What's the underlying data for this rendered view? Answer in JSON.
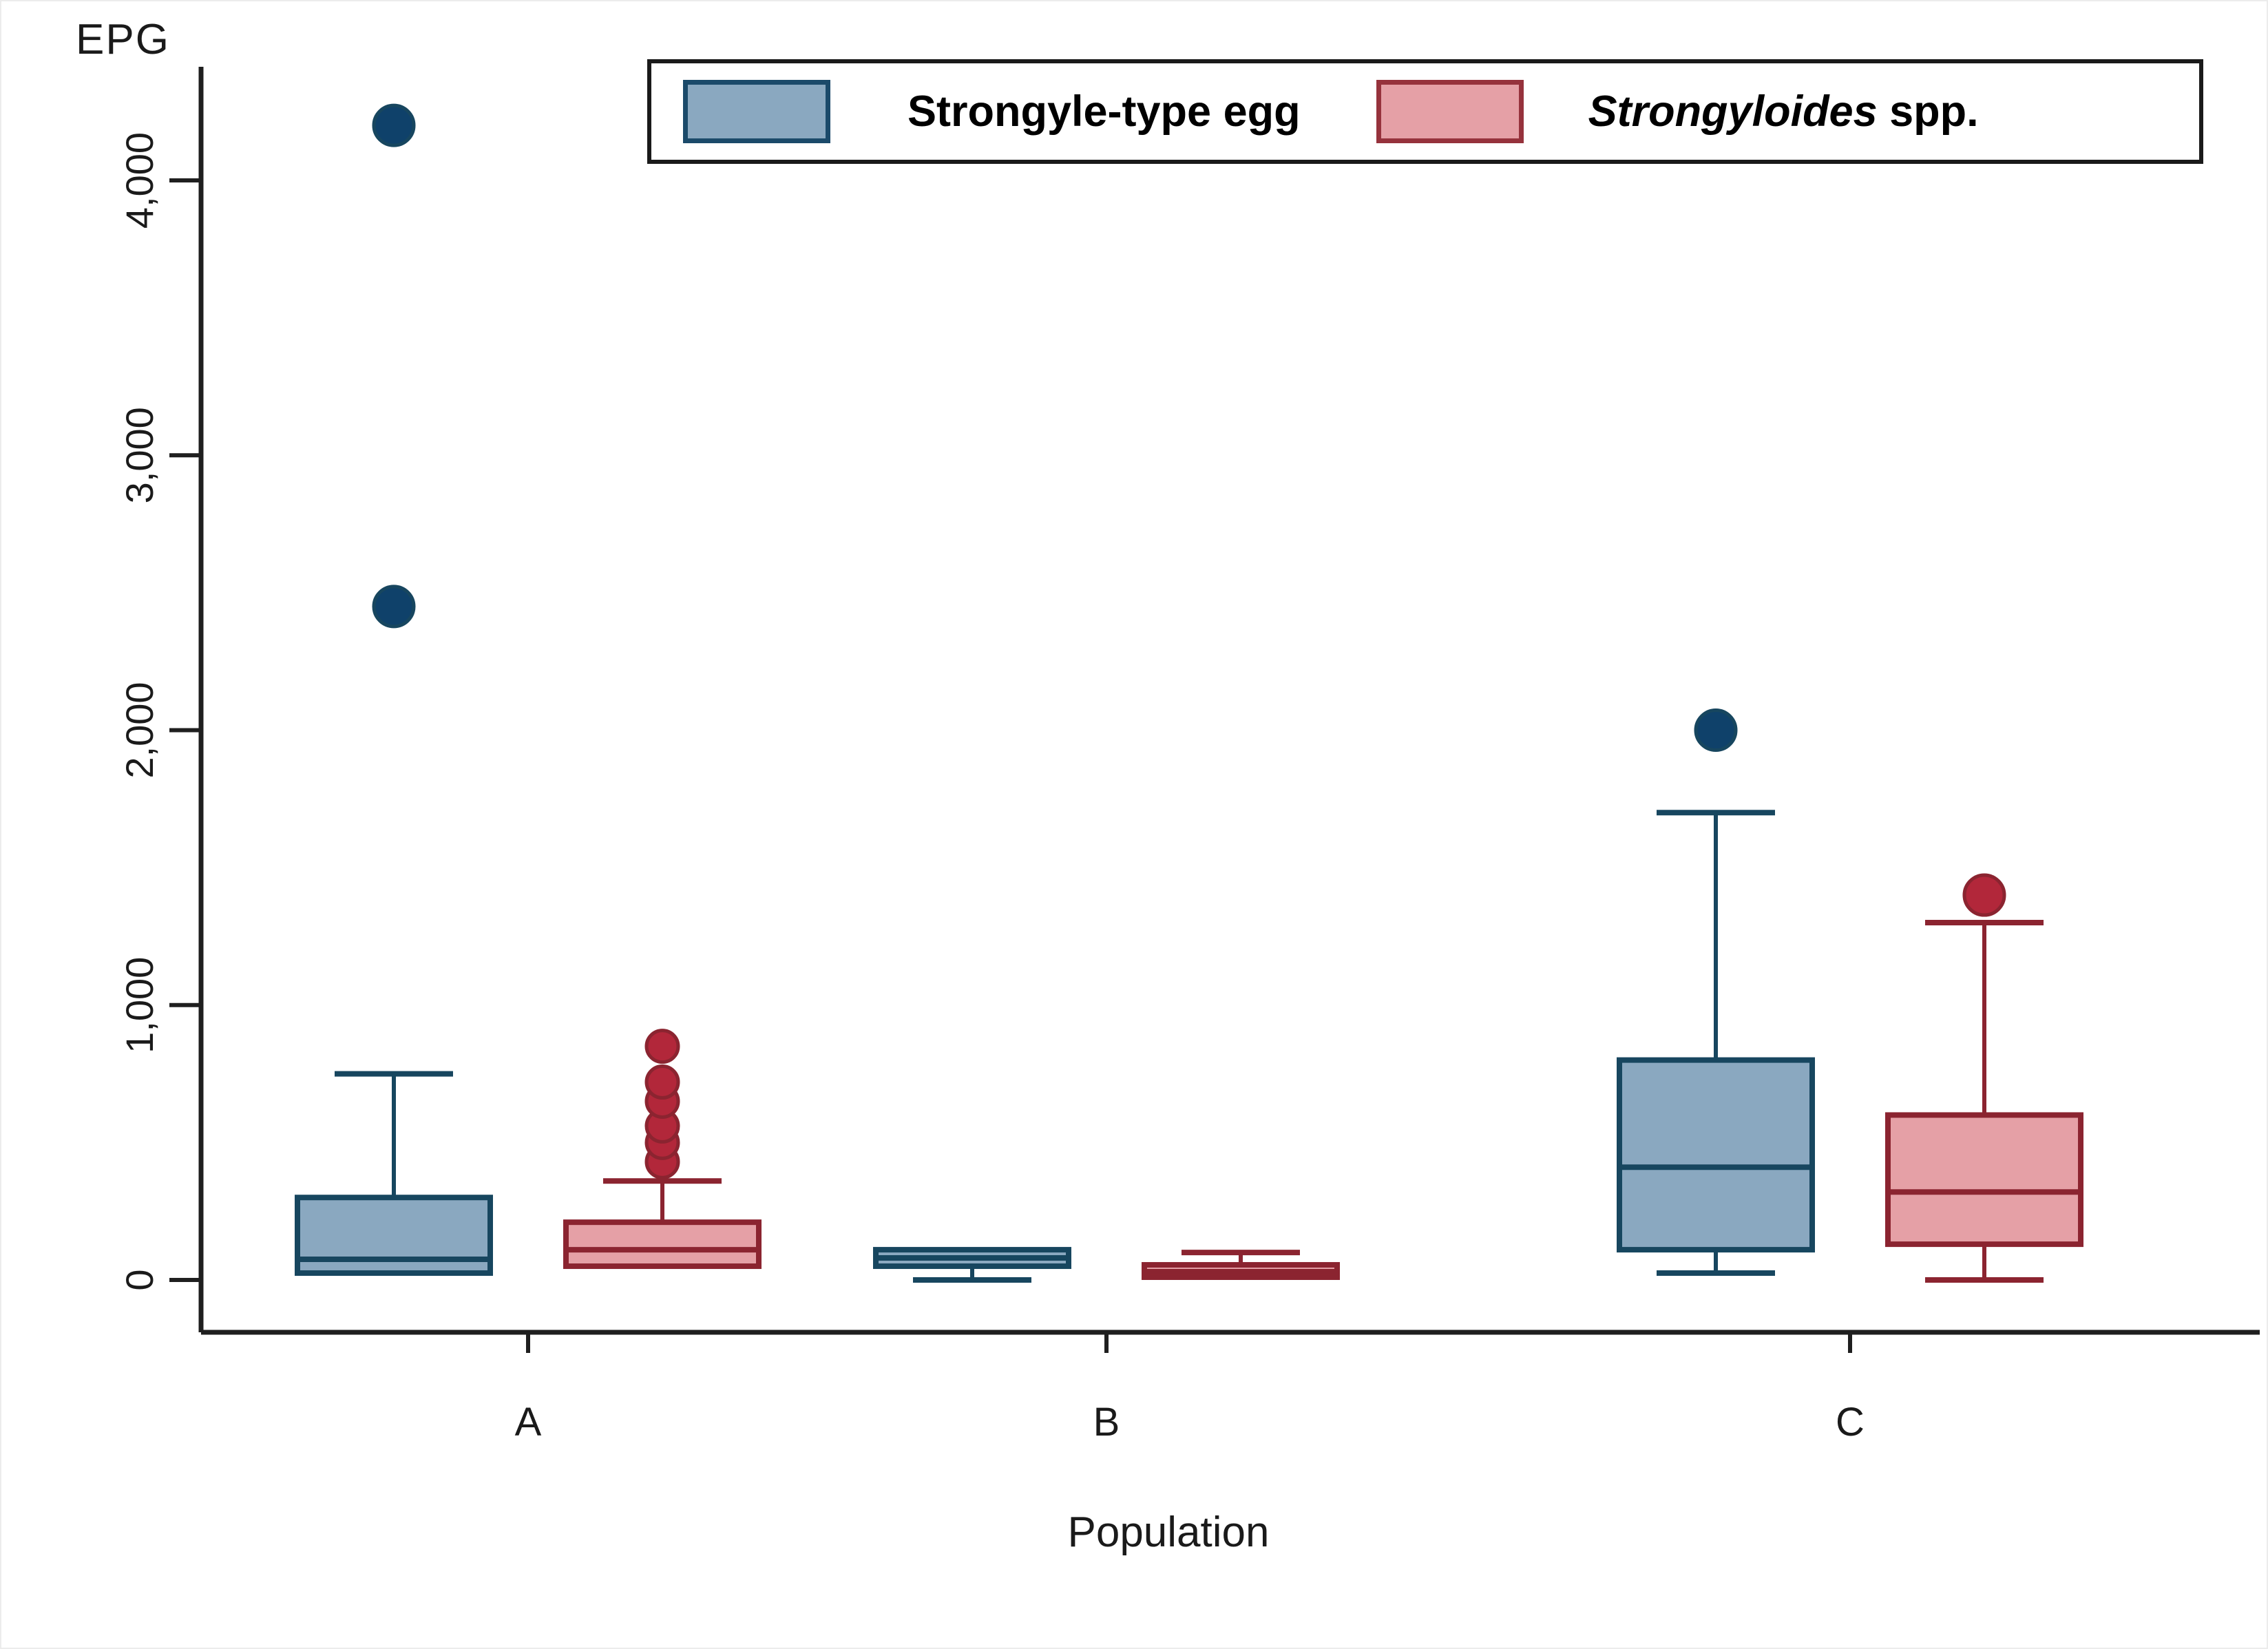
{
  "figure": {
    "background": "#ffffff",
    "edge_border_color": "#ececec"
  },
  "legend": {
    "border_color": "#1a1a1a",
    "items": [
      {
        "key": "strongyle",
        "label": "Strongyle-type egg",
        "swatch_fill": "#8AA8C0",
        "swatch_stroke": "#1B4A6A"
      },
      {
        "key": "strongyloides",
        "label_italic": "Strongyloides",
        "label_suffix": " spp.",
        "swatch_fill": "#E5A0A6",
        "swatch_stroke": "#96323C"
      }
    ]
  },
  "chart_data": {
    "type": "boxplot",
    "title": "",
    "ylabel": "EPG",
    "xlabel": "Population",
    "ylim": [
      0,
      4400
    ],
    "grid": false,
    "legend_position": "top",
    "axis_color": "#1f1f1f",
    "tick_label_color": "#1a1a1a",
    "yticks": [
      0,
      1000,
      2000,
      3000,
      4000
    ],
    "ytick_labels": [
      "0",
      "1,000",
      "2,000",
      "3,000",
      "4,000"
    ],
    "categories": [
      "A",
      "B",
      "C"
    ],
    "series": [
      {
        "key": "strongyle",
        "name": "Strongyle-type egg",
        "fill": "#8AA8C0",
        "stroke": "#17465F",
        "outlier_fill": "#0F416A",
        "boxes": [
          {
            "category": "A",
            "min": 25,
            "q1": 25,
            "median": 75,
            "q3": 300,
            "max": 750,
            "outliers": [
              2450,
              4200
            ]
          },
          {
            "category": "B",
            "min": 0,
            "q1": 50,
            "median": 80,
            "q3": 110,
            "max": 110,
            "outliers": []
          },
          {
            "category": "C",
            "min": 25,
            "q1": 110,
            "median": 410,
            "q3": 800,
            "max": 1700,
            "outliers": [
              2000
            ]
          }
        ]
      },
      {
        "key": "strongyloides",
        "name": "Strongyloides spp.",
        "fill": "#E5A0A6",
        "stroke": "#8B2430",
        "outlier_fill": "#B2273A",
        "boxes": [
          {
            "category": "A",
            "min": 50,
            "q1": 50,
            "median": 110,
            "q3": 210,
            "max": 360,
            "outliers": [
              430,
              500,
              560,
              650,
              720,
              850
            ]
          },
          {
            "category": "B",
            "min": 10,
            "q1": 10,
            "median": 30,
            "q3": 55,
            "max": 100,
            "outliers": []
          },
          {
            "category": "C",
            "min": 0,
            "q1": 130,
            "median": 320,
            "q3": 600,
            "max": 1300,
            "outliers": [
              1400
            ]
          }
        ]
      }
    ]
  }
}
